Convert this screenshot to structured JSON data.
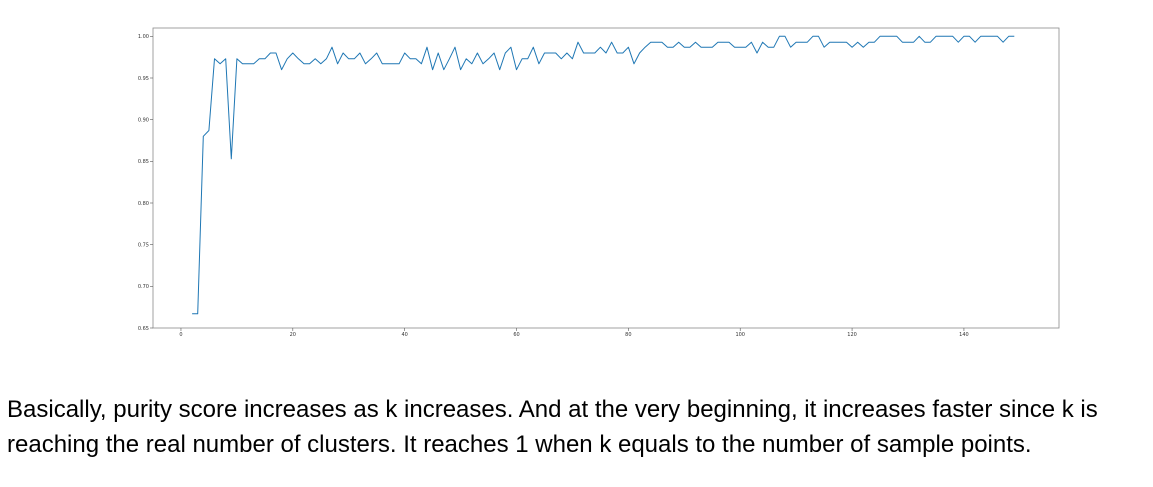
{
  "chart_data": {
    "type": "line",
    "title": "",
    "xlabel": "",
    "ylabel": "",
    "xlim": [
      -5,
      157
    ],
    "ylim": [
      0.65,
      1.01
    ],
    "grid": false,
    "line_color": "#1f77b4",
    "x_ticks": [
      0,
      20,
      40,
      60,
      80,
      100,
      120,
      140
    ],
    "x_tick_labels": [
      "0",
      "20",
      "40",
      "60",
      "80",
      "100",
      "120",
      "140"
    ],
    "y_ticks": [
      0.65,
      0.7,
      0.75,
      0.8,
      0.85,
      0.9,
      0.95,
      1.0
    ],
    "y_tick_labels": [
      "0.65",
      "0.70",
      "0.75",
      "0.80",
      "0.85",
      "0.90",
      "0.95",
      "1.00"
    ],
    "series": [
      {
        "x": [
          2,
          3,
          4,
          5,
          6,
          7,
          8,
          9,
          10,
          11,
          12,
          13,
          14,
          15,
          16,
          17,
          18,
          19,
          20,
          21,
          22,
          23,
          24,
          25,
          26,
          27,
          28,
          29,
          30,
          31,
          32,
          33,
          34,
          35,
          36,
          37,
          38,
          39,
          40,
          41,
          42,
          43,
          44,
          45,
          46,
          47,
          48,
          49,
          50,
          51,
          52,
          53,
          54,
          55,
          56,
          57,
          58,
          59,
          60,
          61,
          62,
          63,
          64,
          65,
          66,
          67,
          68,
          69,
          70,
          71,
          72,
          73,
          74,
          75,
          76,
          77,
          78,
          79,
          80,
          81,
          82,
          83,
          84,
          85,
          86,
          87,
          88,
          89,
          90,
          91,
          92,
          93,
          94,
          95,
          96,
          97,
          98,
          99,
          100,
          101,
          102,
          103,
          104,
          105,
          106,
          107,
          108,
          109,
          110,
          111,
          112,
          113,
          114,
          115,
          116,
          117,
          118,
          119,
          120,
          121,
          122,
          123,
          124,
          125,
          126,
          127,
          128,
          129,
          130,
          131,
          132,
          133,
          134,
          135,
          136,
          137,
          138,
          139,
          140,
          141,
          142,
          143,
          144,
          145,
          146,
          147,
          148,
          149
        ],
        "values": [
          0.667,
          0.667,
          0.88,
          0.887,
          0.973,
          0.967,
          0.973,
          0.853,
          0.973,
          0.967,
          0.967,
          0.967,
          0.973,
          0.973,
          0.98,
          0.98,
          0.96,
          0.973,
          0.98,
          0.973,
          0.967,
          0.967,
          0.973,
          0.967,
          0.973,
          0.987,
          0.967,
          0.98,
          0.973,
          0.973,
          0.98,
          0.967,
          0.973,
          0.98,
          0.967,
          0.967,
          0.967,
          0.967,
          0.98,
          0.973,
          0.973,
          0.967,
          0.987,
          0.96,
          0.98,
          0.96,
          0.973,
          0.987,
          0.96,
          0.973,
          0.967,
          0.98,
          0.967,
          0.973,
          0.98,
          0.96,
          0.98,
          0.987,
          0.96,
          0.973,
          0.973,
          0.987,
          0.967,
          0.98,
          0.98,
          0.98,
          0.973,
          0.98,
          0.973,
          0.993,
          0.98,
          0.98,
          0.98,
          0.987,
          0.98,
          0.993,
          0.98,
          0.98,
          0.987,
          0.967,
          0.98,
          0.987,
          0.993,
          0.993,
          0.993,
          0.987,
          0.987,
          0.993,
          0.987,
          0.987,
          0.993,
          0.987,
          0.987,
          0.987,
          0.993,
          0.993,
          0.993,
          0.987,
          0.987,
          0.987,
          0.993,
          0.98,
          0.993,
          0.987,
          0.987,
          1.0,
          1.0,
          0.987,
          0.993,
          0.993,
          0.993,
          1.0,
          1.0,
          0.987,
          0.993,
          0.993,
          0.993,
          0.993,
          0.987,
          0.993,
          0.987,
          0.993,
          0.993,
          1.0,
          1.0,
          1.0,
          1.0,
          0.993,
          0.993,
          0.993,
          1.0,
          0.993,
          0.993,
          1.0,
          1.0,
          1.0,
          1.0,
          0.993,
          1.0,
          1.0,
          0.993,
          1.0,
          1.0,
          1.0,
          1.0,
          0.993,
          1.0,
          1.0
        ]
      }
    ]
  },
  "caption": {
    "line1": "Basically, purity score increases as k increases. And at the very beginning, it increases faster since k is",
    "line2": "reaching the real number of clusters. It reaches 1 when k equals to the number of sample points."
  }
}
